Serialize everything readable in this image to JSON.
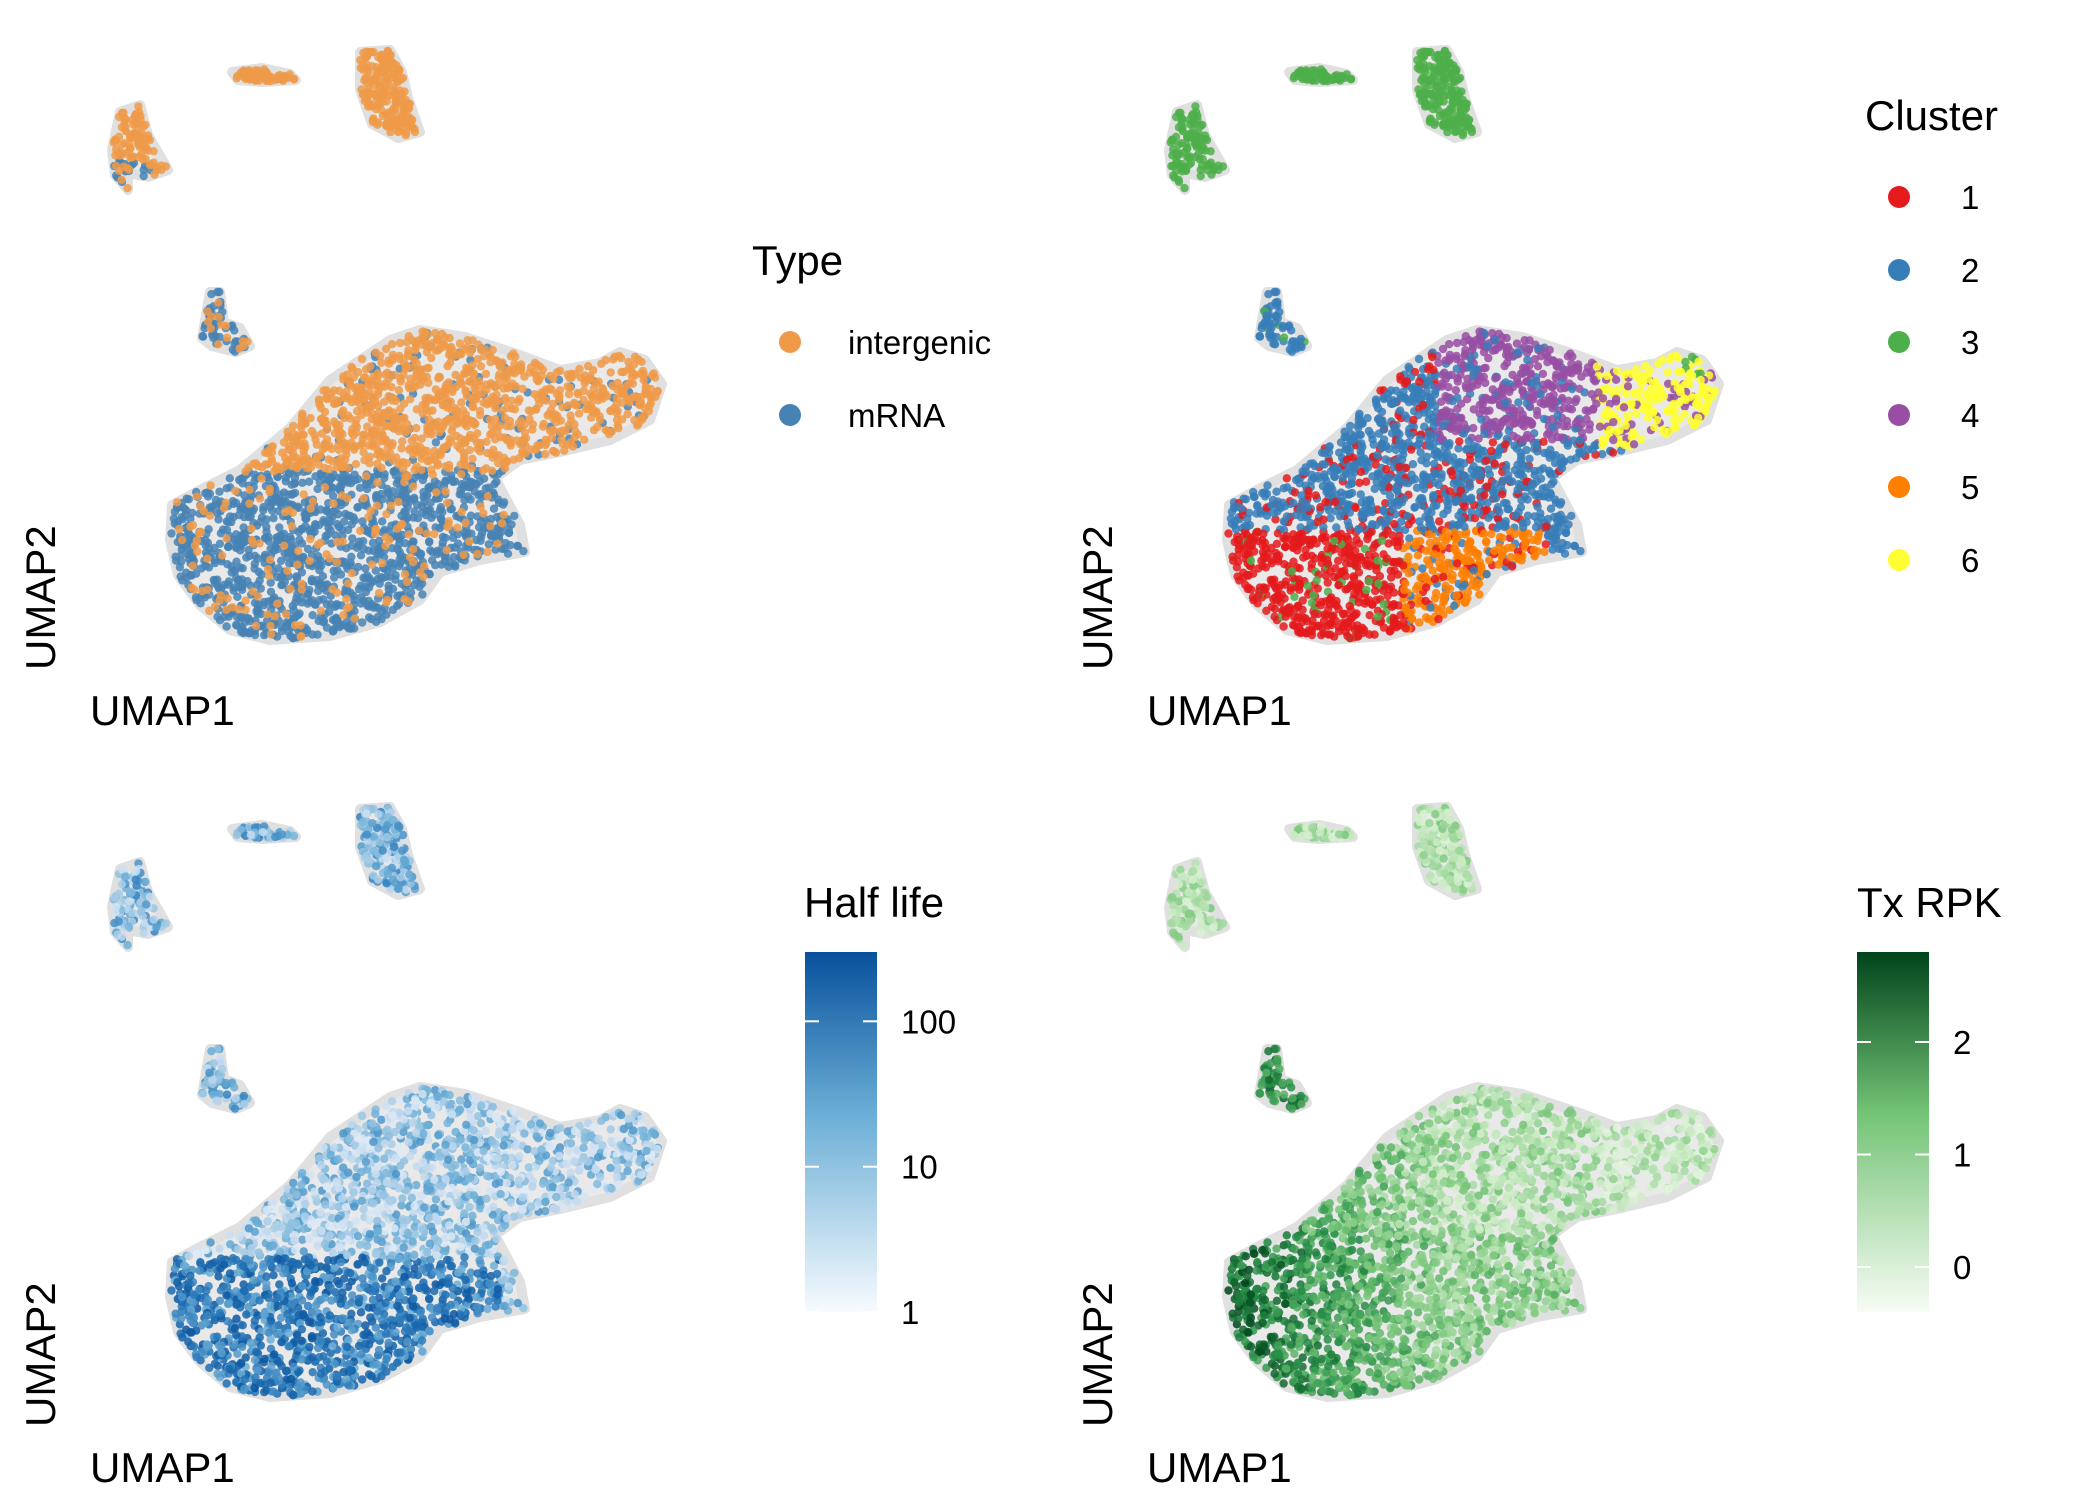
{
  "figure": {
    "panels": [
      {
        "id": "type",
        "xlabel": "UMAP1",
        "ylabel": "UMAP2",
        "legend": {
          "title": "Type",
          "kind": "discrete",
          "entries": [
            {
              "label": "intergenic",
              "color": "#EE9A49"
            },
            {
              "label": "mRNA",
              "color": "#4682B4"
            }
          ]
        }
      },
      {
        "id": "cluster",
        "xlabel": "UMAP1",
        "ylabel": "UMAP2",
        "legend": {
          "title": "Cluster",
          "kind": "discrete",
          "entries": [
            {
              "label": "1",
              "color": "#E41A1C"
            },
            {
              "label": "2",
              "color": "#377EB8"
            },
            {
              "label": "3",
              "color": "#4DAF4A"
            },
            {
              "label": "4",
              "color": "#984EA3"
            },
            {
              "label": "5",
              "color": "#FF7F00"
            },
            {
              "label": "6",
              "color": "#FFFF33"
            }
          ]
        }
      },
      {
        "id": "halflife",
        "xlabel": "UMAP1",
        "ylabel": "UMAP2",
        "legend": {
          "title": "Half life",
          "kind": "continuous",
          "scale": "log10",
          "range": [
            1,
            300
          ],
          "ticks": [
            "1",
            "10",
            "100"
          ],
          "tick_values": [
            1,
            10,
            100
          ],
          "color_low": "#F7FBFF",
          "color_high": "#08519C"
        }
      },
      {
        "id": "txrpk",
        "xlabel": "UMAP1",
        "ylabel": "UMAP2",
        "legend": {
          "title": "Tx RPK",
          "kind": "continuous",
          "scale": "linear",
          "range": [
            -0.4,
            2.8
          ],
          "ticks": [
            "0",
            "1",
            "2"
          ],
          "tick_values": [
            0,
            1,
            2
          ],
          "color_low": "#F7FCF5",
          "color_high": "#00441B"
        }
      }
    ]
  },
  "chart_data": [
    {
      "type": "scatter",
      "title": "",
      "xlabel": "UMAP1",
      "ylabel": "UMAP2",
      "color_by": "Type",
      "series": [
        {
          "name": "intergenic",
          "color": "#EE9A49",
          "regions": [
            "top-left island",
            "top-center islands",
            "upper main body",
            "right arm",
            "lower-right lobe"
          ]
        },
        {
          "name": "mRNA",
          "color": "#4682B4",
          "regions": [
            "lower-left main body",
            "small middle island"
          ]
        }
      ],
      "axes_visible": false,
      "grid": false,
      "legend_position": "right"
    },
    {
      "type": "scatter",
      "title": "",
      "xlabel": "UMAP1",
      "ylabel": "UMAP2",
      "color_by": "Cluster",
      "series": [
        {
          "name": "1",
          "color": "#E41A1C",
          "regions": [
            "lower-left main body"
          ]
        },
        {
          "name": "2",
          "color": "#377EB8",
          "regions": [
            "middle-left main body",
            "small middle island",
            "lower-right lobe"
          ]
        },
        {
          "name": "3",
          "color": "#4DAF4A",
          "regions": [
            "top-left island",
            "top-center islands",
            "right arm tip"
          ]
        },
        {
          "name": "4",
          "color": "#984EA3",
          "regions": [
            "upper main body"
          ]
        },
        {
          "name": "5",
          "color": "#FF7F00",
          "regions": [
            "lower-center main body"
          ]
        },
        {
          "name": "6",
          "color": "#FFFF33",
          "regions": [
            "right arm"
          ]
        }
      ],
      "axes_visible": false,
      "grid": false,
      "legend_position": "right"
    },
    {
      "type": "scatter",
      "title": "",
      "xlabel": "UMAP1",
      "ylabel": "UMAP2",
      "color_by": "Half life",
      "color_scale": {
        "type": "log10",
        "min": 1,
        "max": 300,
        "ticks": [
          1,
          10,
          100
        ],
        "low": "#F7FBFF",
        "high": "#08519C"
      },
      "pattern": "high half life in lower-left body, low half life in upper body and right arm",
      "axes_visible": false,
      "grid": false,
      "legend_position": "right"
    },
    {
      "type": "scatter",
      "title": "",
      "xlabel": "UMAP1",
      "ylabel": "UMAP2",
      "color_by": "Tx RPK",
      "color_scale": {
        "type": "linear",
        "min": -0.4,
        "max": 2.8,
        "ticks": [
          0,
          1,
          2
        ],
        "low": "#F7FCF5",
        "high": "#00441B"
      },
      "pattern": "highest values at lower-left edge and small middle island, low values in right arm",
      "axes_visible": false,
      "grid": false,
      "legend_position": "right"
    }
  ]
}
